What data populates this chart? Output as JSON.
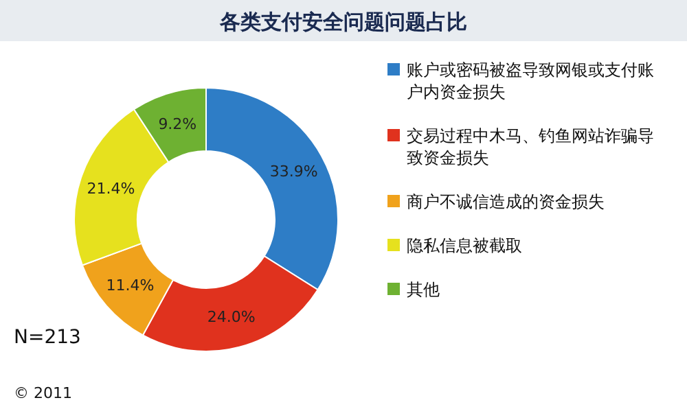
{
  "chart_data": {
    "type": "donut",
    "title": "各类支付安全问题问题占比",
    "categories": [
      "账户或密码被盗导致网银或支付账户内资金损失",
      "交易过程中木马、钓鱼网站诈骗导致资金损失",
      "商户不诚信造成的资金损失",
      "隐私信息被截取",
      "其他"
    ],
    "values": [
      33.9,
      24.0,
      11.4,
      21.4,
      9.2
    ],
    "colors": [
      "#2e7dc6",
      "#e0321e",
      "#f0a21c",
      "#e6e11e",
      "#6eb132"
    ],
    "value_labels": [
      "33.9%",
      "24.0%",
      "11.4%",
      "21.4%",
      "9.2%"
    ],
    "legend": "right",
    "annotations": [
      "N=213",
      "© 2011"
    ]
  }
}
